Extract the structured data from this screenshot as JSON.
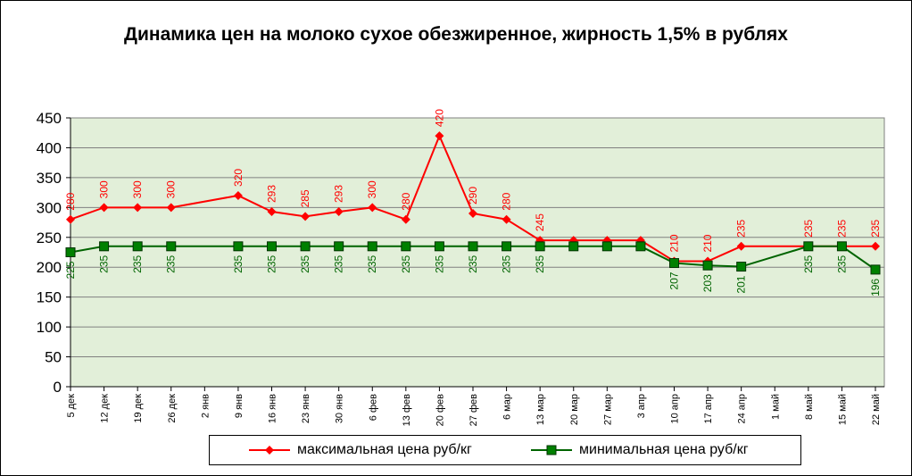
{
  "chart_data": {
    "type": "line",
    "title": "Динамика цен на молоко сухое обезжиренное, жирность 1,5%  в рублях",
    "categories": [
      "5 дек",
      "12 дек",
      "19 дек",
      "26 дек",
      "2 янв",
      "9 янв",
      "16 янв",
      "23 янв",
      "30 янв",
      "6 фев",
      "13 фев",
      "20 фев",
      "27 фев",
      "6 мар",
      "13 мар",
      "20 мар",
      "27 мар",
      "3 апр",
      "10 апр",
      "17 апр",
      "24 апр",
      "1 май",
      "8 май",
      "15 май",
      "22 май"
    ],
    "ylim": [
      0,
      450
    ],
    "yticks": [
      0,
      50,
      100,
      150,
      200,
      250,
      300,
      350,
      400,
      450
    ],
    "grid": true,
    "legend_position": "bottom",
    "series": [
      {
        "name": "максимальная цена руб/кг",
        "color": "#ff0000",
        "marker": "diamond",
        "values": [
          280,
          300,
          300,
          300,
          null,
          320,
          293,
          285,
          293,
          300,
          280,
          420,
          290,
          280,
          245,
          245,
          245,
          245,
          210,
          210,
          235,
          null,
          235,
          235,
          235
        ],
        "labels": [
          "280",
          "300",
          "300",
          "300",
          null,
          "320",
          "293",
          "285",
          "293",
          "300",
          "280",
          "420",
          "290",
          "280",
          "245",
          null,
          null,
          null,
          "210",
          "210",
          "235",
          null,
          "235",
          "235",
          "235"
        ]
      },
      {
        "name": "минимальная цена руб/кг",
        "color": "#006400",
        "marker_fill": "#008000",
        "marker": "square",
        "values": [
          225,
          235,
          235,
          235,
          null,
          235,
          235,
          235,
          235,
          235,
          235,
          235,
          235,
          235,
          235,
          235,
          235,
          235,
          207,
          203,
          201,
          null,
          235,
          235,
          196
        ],
        "labels": [
          "225",
          "235",
          "235",
          "235",
          null,
          "235",
          "235",
          "235",
          "235",
          "235",
          "235",
          "235",
          "235",
          "235",
          "235",
          null,
          null,
          null,
          "207",
          "203",
          "201",
          null,
          "235",
          "235",
          "196"
        ]
      }
    ]
  }
}
